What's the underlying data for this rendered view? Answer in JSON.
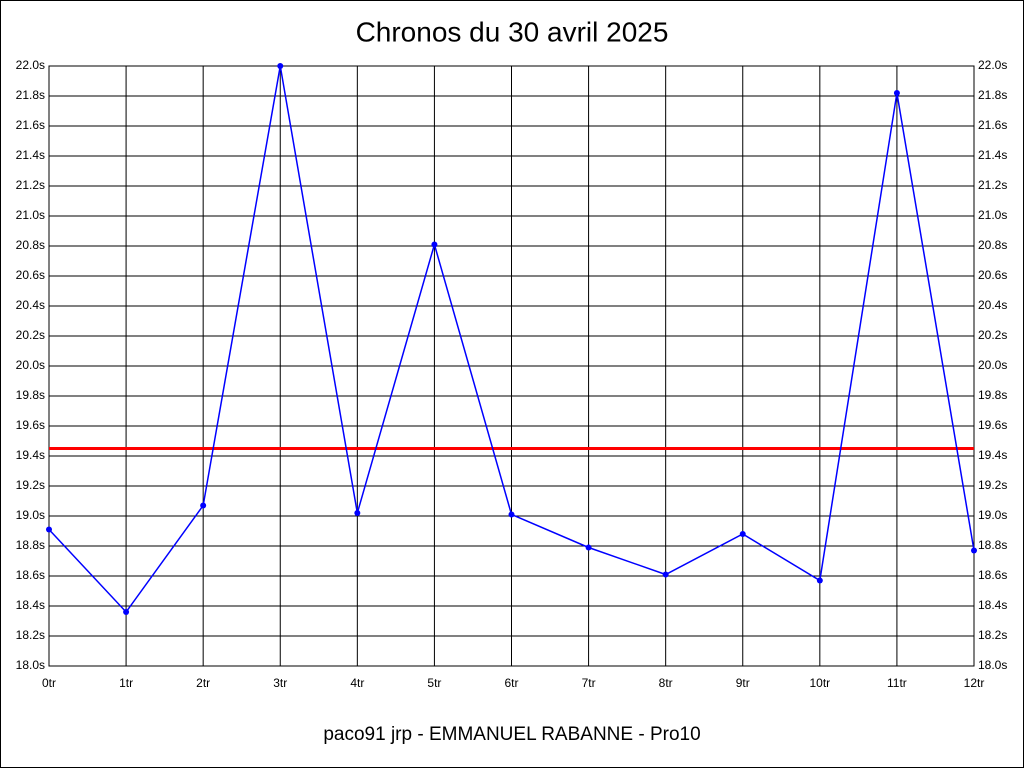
{
  "chart_data": {
    "type": "line",
    "title": "Chronos du 30 avril 2025",
    "footer": "paco91 jrp - EMMANUEL RABANNE - Pro10",
    "x": [
      0,
      1,
      2,
      3,
      4,
      5,
      6,
      7,
      8,
      9,
      10,
      11,
      12
    ],
    "series": [
      {
        "color": "#0000ff",
        "values": [
          18.91,
          18.36,
          19.07,
          22.0,
          19.02,
          20.81,
          19.01,
          18.79,
          18.61,
          18.88,
          18.57,
          21.82,
          18.77
        ]
      }
    ],
    "reference_line": {
      "value": 19.45,
      "color": "#ff0000"
    },
    "xlim": [
      0,
      12
    ],
    "xticks": [
      {
        "value": 0,
        "label": "0tr"
      },
      {
        "value": 1,
        "label": "1tr"
      },
      {
        "value": 2,
        "label": "2tr"
      },
      {
        "value": 3,
        "label": "3tr"
      },
      {
        "value": 4,
        "label": "4tr"
      },
      {
        "value": 5,
        "label": "5tr"
      },
      {
        "value": 6,
        "label": "6tr"
      },
      {
        "value": 7,
        "label": "7tr"
      },
      {
        "value": 8,
        "label": "8tr"
      },
      {
        "value": 9,
        "label": "9tr"
      },
      {
        "value": 10,
        "label": "10tr"
      },
      {
        "value": 11,
        "label": "11tr"
      },
      {
        "value": 12,
        "label": "12tr"
      }
    ],
    "ylim": [
      18.0,
      22.0
    ],
    "yticks": [
      {
        "value": 18.0,
        "label": "18.0s"
      },
      {
        "value": 18.2,
        "label": "18.2s"
      },
      {
        "value": 18.4,
        "label": "18.4s"
      },
      {
        "value": 18.6,
        "label": "18.6s"
      },
      {
        "value": 18.8,
        "label": "18.8s"
      },
      {
        "value": 19.0,
        "label": "19.0s"
      },
      {
        "value": 19.2,
        "label": "19.2s"
      },
      {
        "value": 19.4,
        "label": "19.4s"
      },
      {
        "value": 19.6,
        "label": "19.6s"
      },
      {
        "value": 19.8,
        "label": "19.8s"
      },
      {
        "value": 20.0,
        "label": "20.0s"
      },
      {
        "value": 20.2,
        "label": "20.2s"
      },
      {
        "value": 20.4,
        "label": "20.4s"
      },
      {
        "value": 20.6,
        "label": "20.6s"
      },
      {
        "value": 20.8,
        "label": "20.8s"
      },
      {
        "value": 21.0,
        "label": "21.0s"
      },
      {
        "value": 21.2,
        "label": "21.2s"
      },
      {
        "value": 21.4,
        "label": "21.4s"
      },
      {
        "value": 21.6,
        "label": "21.6s"
      },
      {
        "value": 21.8,
        "label": "21.8s"
      },
      {
        "value": 22.0,
        "label": "22.0s"
      }
    ],
    "grid": true
  }
}
